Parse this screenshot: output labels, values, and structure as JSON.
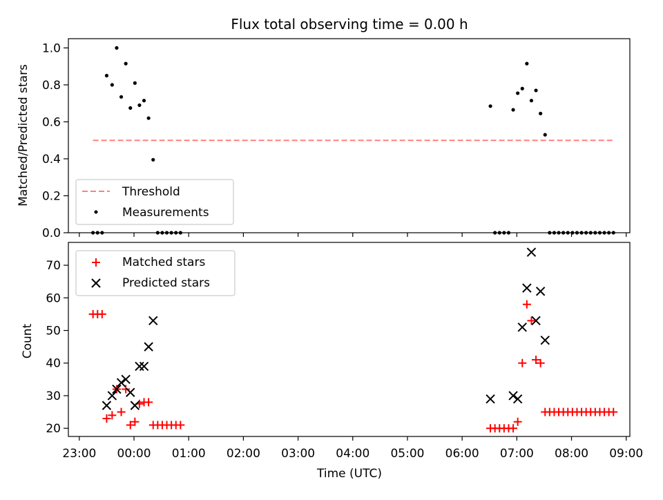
{
  "chart_data": [
    {
      "type": "scatter",
      "title": "Flux total observing time = 0.00 h",
      "xlabel": "",
      "ylabel": "Matched/Predicted stars",
      "ylim": [
        0,
        1.05
      ],
      "yticks": [
        "0.0",
        "0.2",
        "0.4",
        "0.6",
        "0.8",
        "1.0"
      ],
      "xlim": [
        "22:48",
        "09:04"
      ],
      "grid": false,
      "legend": {
        "placement": "lower-left",
        "entries": [
          "Threshold",
          "Measurements"
        ]
      },
      "threshold": {
        "name": "Threshold",
        "value": 0.5,
        "x_start": "23:15",
        "x_end": "08:45",
        "color": "#ff7f7f"
      },
      "series": [
        {
          "name": "Measurements",
          "color": "#000000",
          "points": [
            [
              "23:15",
              0.0
            ],
            [
              "23:20",
              0.0
            ],
            [
              "23:25",
              0.0
            ],
            [
              "23:30",
              0.85
            ],
            [
              "23:36",
              0.8
            ],
            [
              "23:41",
              1.0
            ],
            [
              "23:46",
              0.735
            ],
            [
              "23:51",
              0.915
            ],
            [
              "23:56",
              0.675
            ],
            [
              "00:01",
              0.81
            ],
            [
              "00:06",
              0.69
            ],
            [
              "00:11",
              0.715
            ],
            [
              "00:16",
              0.62
            ],
            [
              "00:21",
              0.395
            ],
            [
              "00:26",
              0.0
            ],
            [
              "00:31",
              0.0
            ],
            [
              "00:36",
              0.0
            ],
            [
              "00:41",
              0.0
            ],
            [
              "00:46",
              0.0
            ],
            [
              "00:51",
              0.0
            ],
            [
              "06:31",
              0.685
            ],
            [
              "06:36",
              0.0
            ],
            [
              "06:41",
              0.0
            ],
            [
              "06:46",
              0.0
            ],
            [
              "06:51",
              0.0
            ],
            [
              "06:56",
              0.665
            ],
            [
              "07:01",
              0.755
            ],
            [
              "07:06",
              0.78
            ],
            [
              "07:11",
              0.915
            ],
            [
              "07:16",
              0.715
            ],
            [
              "07:21",
              0.77
            ],
            [
              "07:26",
              0.645
            ],
            [
              "07:31",
              0.53
            ],
            [
              "07:36",
              0.0
            ],
            [
              "07:41",
              0.0
            ],
            [
              "07:46",
              0.0
            ],
            [
              "07:51",
              0.0
            ],
            [
              "07:56",
              0.0
            ],
            [
              "08:01",
              0.0
            ],
            [
              "08:06",
              0.0
            ],
            [
              "08:11",
              0.0
            ],
            [
              "08:16",
              0.0
            ],
            [
              "08:21",
              0.0
            ],
            [
              "08:26",
              0.0
            ],
            [
              "08:31",
              0.0
            ],
            [
              "08:36",
              0.0
            ],
            [
              "08:41",
              0.0
            ],
            [
              "08:46",
              0.0
            ]
          ]
        }
      ]
    },
    {
      "type": "scatter",
      "title": "",
      "xlabel": "Time (UTC)",
      "ylabel": "Count",
      "ylim": [
        17.5,
        77
      ],
      "yticks": [
        "20",
        "30",
        "40",
        "50",
        "60",
        "70"
      ],
      "xlim": [
        "22:48",
        "09:04"
      ],
      "xticks": [
        "23:00",
        "00:00",
        "01:00",
        "02:00",
        "03:00",
        "04:00",
        "05:00",
        "06:00",
        "07:00",
        "08:00",
        "09:00"
      ],
      "grid": false,
      "legend": {
        "placement": "top-left",
        "entries": [
          "Matched stars",
          "Predicted stars"
        ]
      },
      "series": [
        {
          "name": "Matched stars",
          "color": "#ff0000",
          "marker": "+",
          "points": [
            [
              "23:15",
              55
            ],
            [
              "23:20",
              55
            ],
            [
              "23:25",
              55
            ],
            [
              "23:30",
              23
            ],
            [
              "23:36",
              24
            ],
            [
              "23:41",
              32
            ],
            [
              "23:46",
              25
            ],
            [
              "23:51",
              32
            ],
            [
              "23:56",
              21
            ],
            [
              "00:01",
              22
            ],
            [
              "00:06",
              27.5
            ],
            [
              "00:11",
              28
            ],
            [
              "00:16",
              28
            ],
            [
              "00:21",
              21
            ],
            [
              "00:26",
              21
            ],
            [
              "00:31",
              21
            ],
            [
              "00:36",
              21
            ],
            [
              "00:41",
              21
            ],
            [
              "00:46",
              21
            ],
            [
              "00:51",
              21
            ],
            [
              "06:31",
              20
            ],
            [
              "06:36",
              20
            ],
            [
              "06:41",
              20
            ],
            [
              "06:46",
              20
            ],
            [
              "06:51",
              20
            ],
            [
              "06:56",
              20
            ],
            [
              "07:01",
              22
            ],
            [
              "07:06",
              40
            ],
            [
              "07:11",
              58
            ],
            [
              "07:16",
              53
            ],
            [
              "07:21",
              41
            ],
            [
              "07:26",
              40
            ],
            [
              "07:31",
              25
            ],
            [
              "07:36",
              25
            ],
            [
              "07:41",
              25
            ],
            [
              "07:46",
              25
            ],
            [
              "07:51",
              25
            ],
            [
              "07:56",
              25
            ],
            [
              "08:01",
              25
            ],
            [
              "08:06",
              25
            ],
            [
              "08:11",
              25
            ],
            [
              "08:16",
              25
            ],
            [
              "08:21",
              25
            ],
            [
              "08:26",
              25
            ],
            [
              "08:31",
              25
            ],
            [
              "08:36",
              25
            ],
            [
              "08:41",
              25
            ],
            [
              "08:46",
              25
            ]
          ]
        },
        {
          "name": "Predicted stars",
          "color": "#000000",
          "marker": "x",
          "points": [
            [
              "23:30",
              27
            ],
            [
              "23:36",
              30
            ],
            [
              "23:41",
              32
            ],
            [
              "23:46",
              34
            ],
            [
              "23:51",
              35
            ],
            [
              "23:56",
              31
            ],
            [
              "00:01",
              27
            ],
            [
              "00:06",
              39
            ],
            [
              "00:11",
              39
            ],
            [
              "00:16",
              45
            ],
            [
              "00:21",
              53
            ],
            [
              "06:31",
              29
            ],
            [
              "06:56",
              30
            ],
            [
              "07:01",
              29
            ],
            [
              "07:06",
              51
            ],
            [
              "07:11",
              63
            ],
            [
              "07:16",
              74
            ],
            [
              "07:21",
              53
            ],
            [
              "07:26",
              62
            ],
            [
              "07:31",
              47
            ]
          ]
        }
      ]
    }
  ]
}
